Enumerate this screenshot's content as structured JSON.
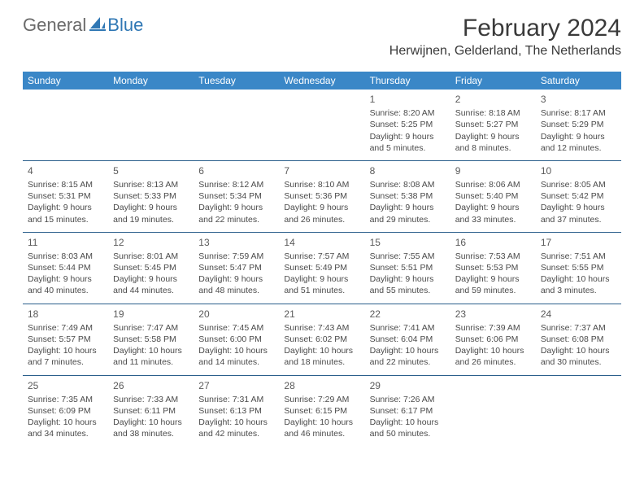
{
  "brand": {
    "general": "General",
    "blue": "Blue"
  },
  "title": "February 2024",
  "location": "Herwijnen, Gelderland, The Netherlands",
  "colors": {
    "header_bg": "#3a87c7",
    "header_text": "#ffffff",
    "rule": "#2b5f8c",
    "body_text": "#4a4a4a",
    "logo_gray": "#6a6a6a",
    "logo_blue": "#2f77b4"
  },
  "typography": {
    "title_fontsize": 30,
    "location_fontsize": 16,
    "weekday_fontsize": 12,
    "daynum_fontsize": 12,
    "body_fontsize": 10.5
  },
  "weekdays": [
    "Sunday",
    "Monday",
    "Tuesday",
    "Wednesday",
    "Thursday",
    "Friday",
    "Saturday"
  ],
  "weeks": [
    [
      null,
      null,
      null,
      null,
      {
        "n": "1",
        "sr": "8:20 AM",
        "ss": "5:25 PM",
        "dl": "9 hours and 5 minutes."
      },
      {
        "n": "2",
        "sr": "8:18 AM",
        "ss": "5:27 PM",
        "dl": "9 hours and 8 minutes."
      },
      {
        "n": "3",
        "sr": "8:17 AM",
        "ss": "5:29 PM",
        "dl": "9 hours and 12 minutes."
      }
    ],
    [
      {
        "n": "4",
        "sr": "8:15 AM",
        "ss": "5:31 PM",
        "dl": "9 hours and 15 minutes."
      },
      {
        "n": "5",
        "sr": "8:13 AM",
        "ss": "5:33 PM",
        "dl": "9 hours and 19 minutes."
      },
      {
        "n": "6",
        "sr": "8:12 AM",
        "ss": "5:34 PM",
        "dl": "9 hours and 22 minutes."
      },
      {
        "n": "7",
        "sr": "8:10 AM",
        "ss": "5:36 PM",
        "dl": "9 hours and 26 minutes."
      },
      {
        "n": "8",
        "sr": "8:08 AM",
        "ss": "5:38 PM",
        "dl": "9 hours and 29 minutes."
      },
      {
        "n": "9",
        "sr": "8:06 AM",
        "ss": "5:40 PM",
        "dl": "9 hours and 33 minutes."
      },
      {
        "n": "10",
        "sr": "8:05 AM",
        "ss": "5:42 PM",
        "dl": "9 hours and 37 minutes."
      }
    ],
    [
      {
        "n": "11",
        "sr": "8:03 AM",
        "ss": "5:44 PM",
        "dl": "9 hours and 40 minutes."
      },
      {
        "n": "12",
        "sr": "8:01 AM",
        "ss": "5:45 PM",
        "dl": "9 hours and 44 minutes."
      },
      {
        "n": "13",
        "sr": "7:59 AM",
        "ss": "5:47 PM",
        "dl": "9 hours and 48 minutes."
      },
      {
        "n": "14",
        "sr": "7:57 AM",
        "ss": "5:49 PM",
        "dl": "9 hours and 51 minutes."
      },
      {
        "n": "15",
        "sr": "7:55 AM",
        "ss": "5:51 PM",
        "dl": "9 hours and 55 minutes."
      },
      {
        "n": "16",
        "sr": "7:53 AM",
        "ss": "5:53 PM",
        "dl": "9 hours and 59 minutes."
      },
      {
        "n": "17",
        "sr": "7:51 AM",
        "ss": "5:55 PM",
        "dl": "10 hours and 3 minutes."
      }
    ],
    [
      {
        "n": "18",
        "sr": "7:49 AM",
        "ss": "5:57 PM",
        "dl": "10 hours and 7 minutes."
      },
      {
        "n": "19",
        "sr": "7:47 AM",
        "ss": "5:58 PM",
        "dl": "10 hours and 11 minutes."
      },
      {
        "n": "20",
        "sr": "7:45 AM",
        "ss": "6:00 PM",
        "dl": "10 hours and 14 minutes."
      },
      {
        "n": "21",
        "sr": "7:43 AM",
        "ss": "6:02 PM",
        "dl": "10 hours and 18 minutes."
      },
      {
        "n": "22",
        "sr": "7:41 AM",
        "ss": "6:04 PM",
        "dl": "10 hours and 22 minutes."
      },
      {
        "n": "23",
        "sr": "7:39 AM",
        "ss": "6:06 PM",
        "dl": "10 hours and 26 minutes."
      },
      {
        "n": "24",
        "sr": "7:37 AM",
        "ss": "6:08 PM",
        "dl": "10 hours and 30 minutes."
      }
    ],
    [
      {
        "n": "25",
        "sr": "7:35 AM",
        "ss": "6:09 PM",
        "dl": "10 hours and 34 minutes."
      },
      {
        "n": "26",
        "sr": "7:33 AM",
        "ss": "6:11 PM",
        "dl": "10 hours and 38 minutes."
      },
      {
        "n": "27",
        "sr": "7:31 AM",
        "ss": "6:13 PM",
        "dl": "10 hours and 42 minutes."
      },
      {
        "n": "28",
        "sr": "7:29 AM",
        "ss": "6:15 PM",
        "dl": "10 hours and 46 minutes."
      },
      {
        "n": "29",
        "sr": "7:26 AM",
        "ss": "6:17 PM",
        "dl": "10 hours and 50 minutes."
      },
      null,
      null
    ]
  ],
  "labels": {
    "sunrise": "Sunrise: ",
    "sunset": "Sunset: ",
    "daylight": "Daylight: "
  }
}
